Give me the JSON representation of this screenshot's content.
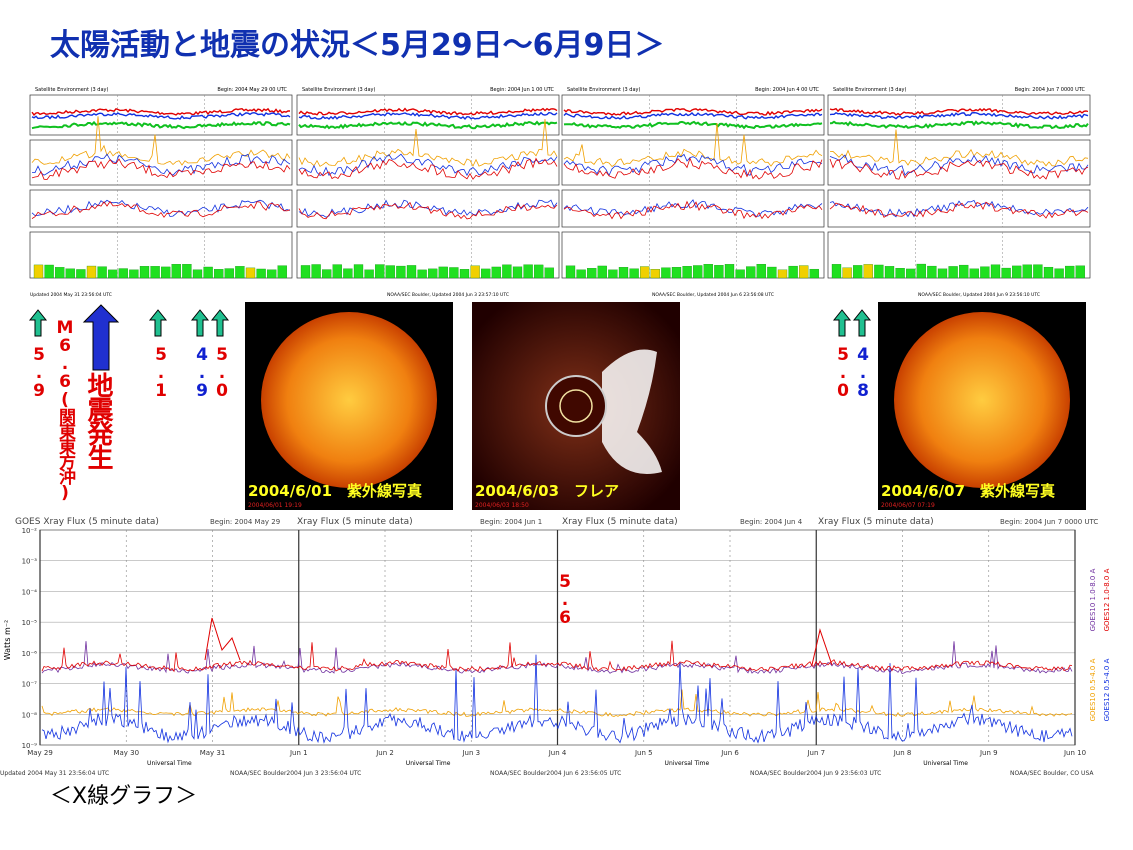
{
  "title": "太陽活動と地震の状況＜5月29日～6月9日＞",
  "env_panels": [
    {
      "header": "Satellite Environment (3 day)",
      "begin": "Begin: 2004 May 29 00 UTC",
      "footer": "Updated 2004 May 31 23:56:04 UTC"
    },
    {
      "header": "Satellite Environment (3 day)",
      "begin": "Begin: 2004 Jun 1 00 UTC",
      "footer": "NOAA/SEC Boulder, Updated 2004 Jun 3 23:57:10 UTC"
    },
    {
      "header": "Satellite Environment (3 day)",
      "begin": "Begin: 2004 Jun 4 00 UTC",
      "footer": "NOAA/SEC Boulder, Updated 2004 Jun 6 23:56:08 UTC"
    },
    {
      "header": "Satellite Environment (3 day)",
      "begin": "Begin: 2004 Jun 7 0000 UTC",
      "footer": "NOAA/SEC Boulder, Updated 2004 Jun 9 23:56:10 UTC"
    }
  ],
  "quakes": [
    {
      "mag": "5.9",
      "color": "#e00000"
    },
    {
      "mag": "5.1",
      "color": "#e00000"
    },
    {
      "mag": "4.9",
      "color": "#1020d0"
    },
    {
      "mag": "5.0",
      "color": "#e00000"
    },
    {
      "mag": "5.0",
      "color": "#e00000"
    },
    {
      "mag": "4.8",
      "color": "#1020d0"
    }
  ],
  "main_quake": {
    "mag": "M6.6(関東東方沖)",
    "label": "地震発生"
  },
  "photos": [
    {
      "caption": "2004/6/01　紫外線写真",
      "stamp": "2004/06/01 19:19"
    },
    {
      "caption": "2004/6/03　フレア",
      "stamp": "2004/06/03 18:50"
    },
    {
      "caption": "2004/6/07　紫外線写真",
      "stamp": "2004/06/07 07:19"
    }
  ],
  "xray": {
    "panels": [
      {
        "title": "GOES Xray Flux (5 minute data)",
        "begin": "Begin: 2004 May 29"
      },
      {
        "title": "Xray Flux (5 minute data)",
        "begin": "Begin: 2004 Jun 1"
      },
      {
        "title": "Xray Flux (5 minute data)",
        "begin": "Begin: 2004 Jun 4"
      },
      {
        "title": "Xray Flux (5 minute data)",
        "begin": "Begin: 2004 Jun 7 0000 UTC"
      }
    ],
    "yticks": [
      "10⁻²",
      "10⁻³",
      "10⁻⁴",
      "10⁻⁵",
      "10⁻⁶",
      "10⁻⁷",
      "10⁻⁸",
      "10⁻⁹"
    ],
    "ylabel": "Watts m⁻²",
    "xticks": [
      "May 29",
      "May 30",
      "May 31",
      "Jun 1",
      "Jun 2",
      "Jun 3",
      "Jun 4",
      "Jun 5",
      "Jun 6",
      "Jun 7",
      "Jun 8",
      "Jun 9",
      "Jun 10"
    ],
    "xlabel": "Universal Time",
    "footers": [
      "Updated 2004 May 31 23:56:04 UTC",
      "NOAA/SEC Boulder2004 Jun 3 23:56:04 UTC",
      "NOAA/SEC Boulder2004 Jun 6 23:56:05 UTC",
      "NOAA/SEC Boulder2004 Jun 9 23:56:03 UTC",
      "NOAA/SEC Boulder, CO USA"
    ],
    "legend": [
      {
        "text": "GOES10 1.0-8.0 A",
        "color": "#7030a0"
      },
      {
        "text": "GOES12 1.0-8.0 A",
        "color": "#e00000"
      },
      {
        "text": "GOES10 0.5-4.0 A",
        "color": "#f0a000"
      },
      {
        "text": "GOES12 0.5-4.0 A",
        "color": "#1030e0"
      }
    ],
    "quake": "5.6"
  },
  "caption": "＜X線グラフ＞"
}
